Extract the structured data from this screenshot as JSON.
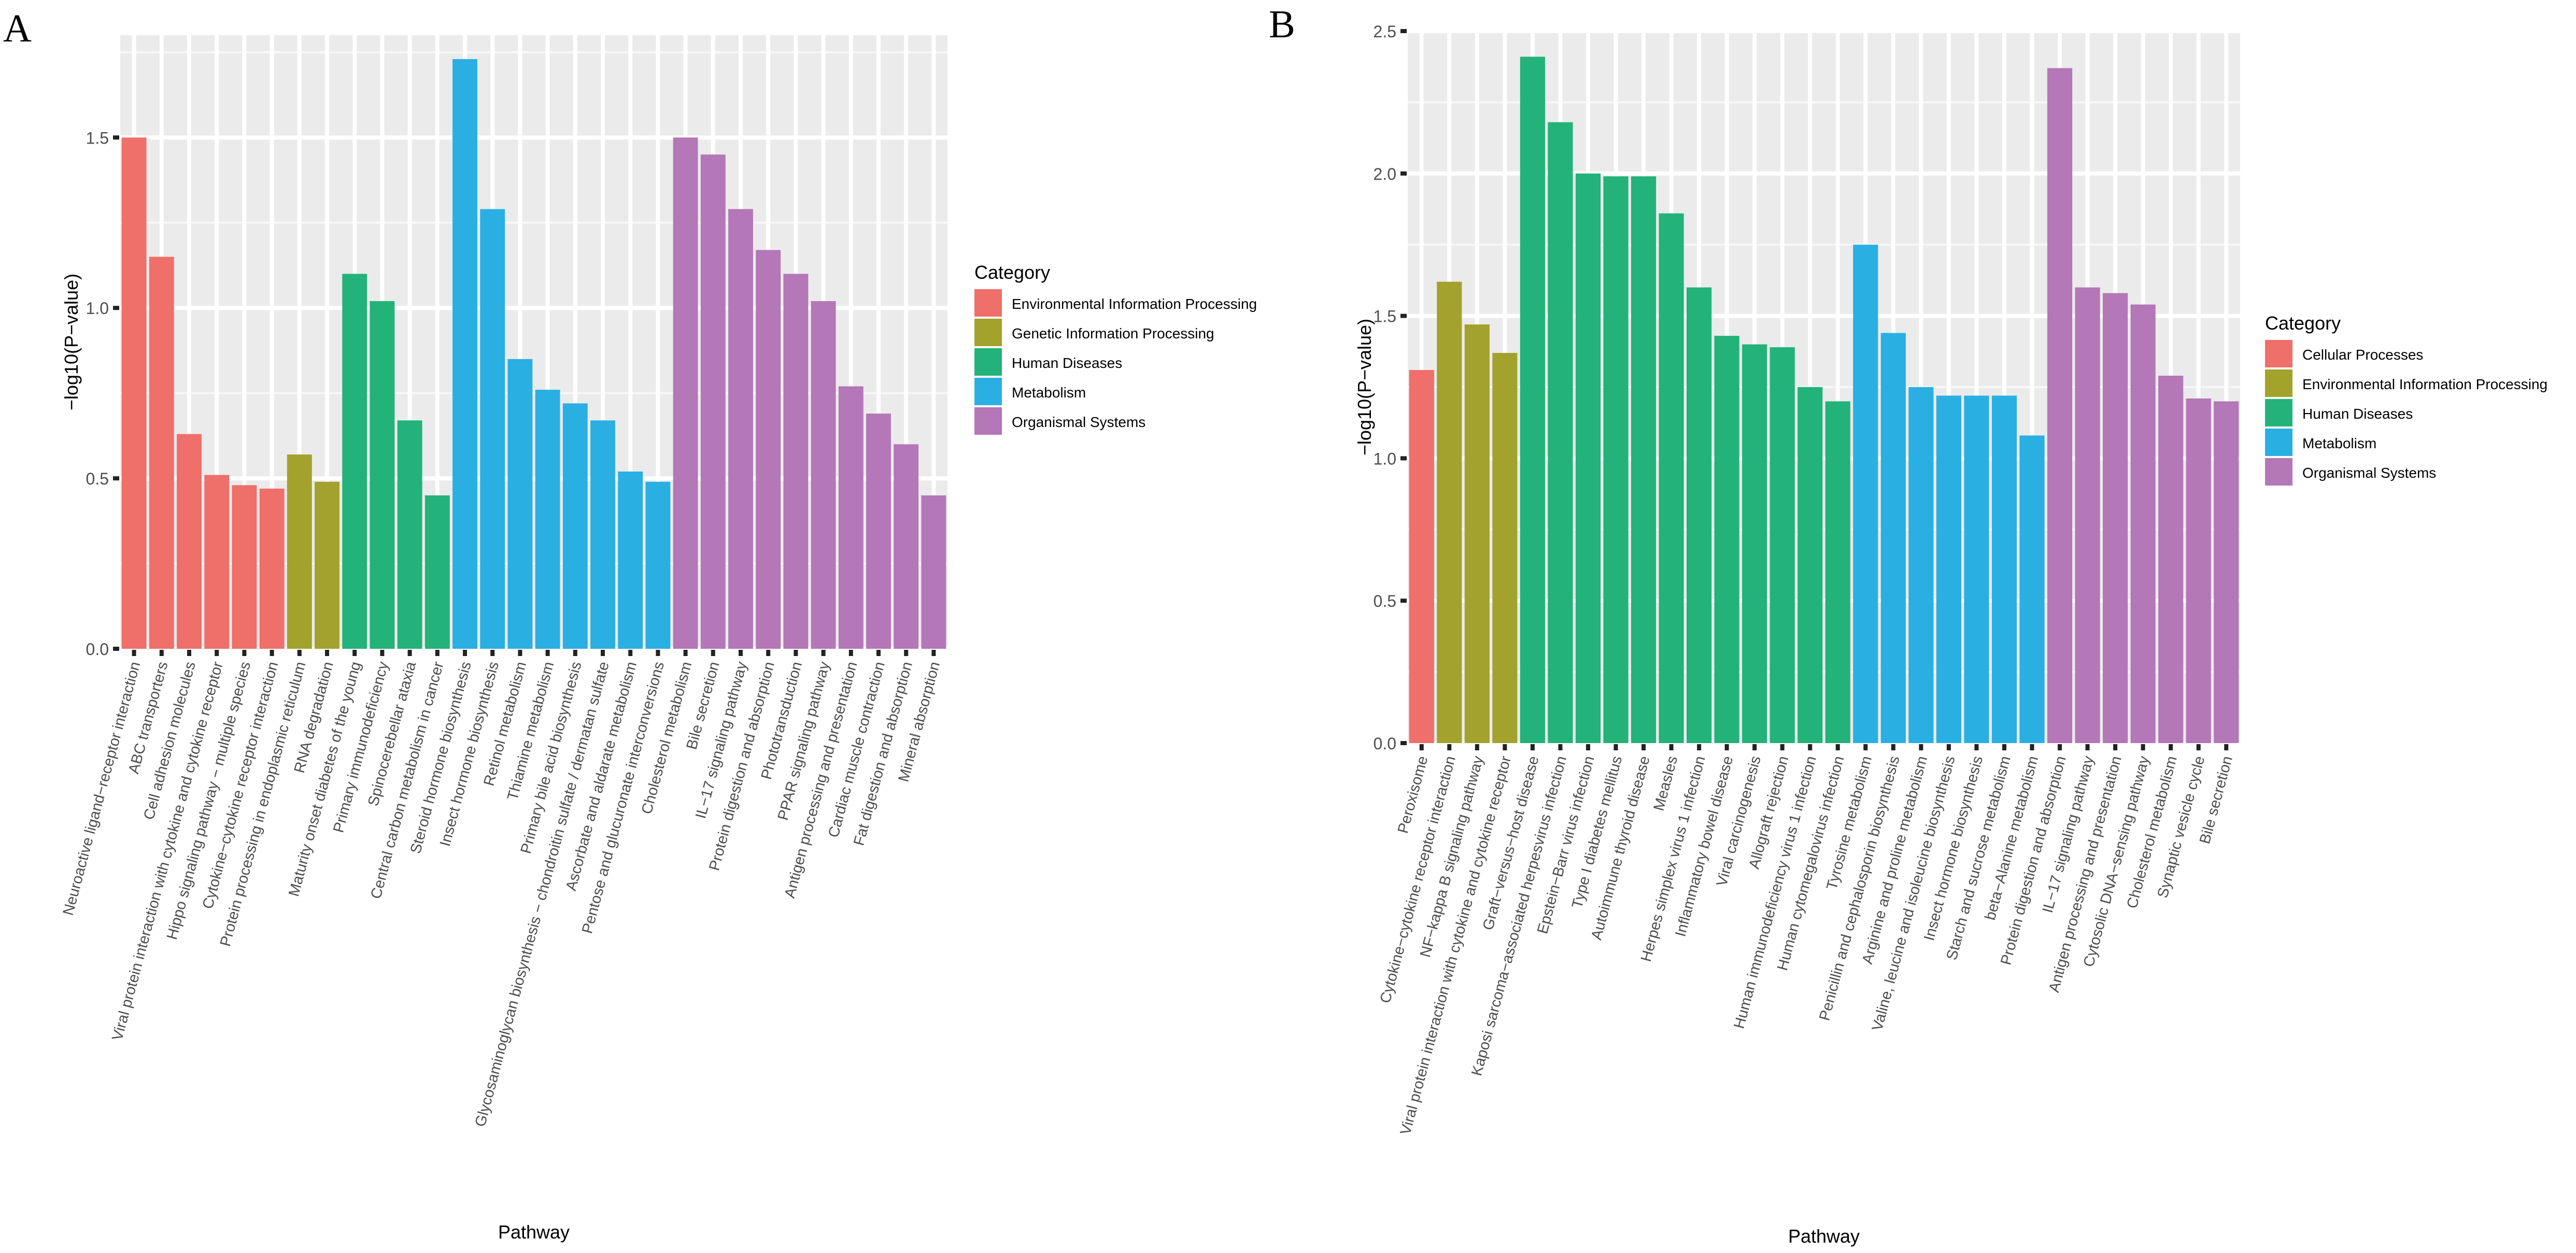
{
  "figure": {
    "panel_a_label": "A",
    "panel_b_label": "B"
  },
  "chart_data": [
    {
      "type": "bar",
      "panel": "A",
      "xlabel": "Pathway",
      "ylabel": "−log10(P−value)",
      "ylim": [
        0,
        1.8
      ],
      "yticks": [
        0.0,
        0.5,
        1.0,
        1.5
      ],
      "ytick_labels": [
        "0.0",
        "0.5",
        "1.0",
        "1.5"
      ],
      "grid": true,
      "legend_position": "right",
      "legend_title": "Category",
      "legend": [
        {
          "name": "Environmental Information Processing",
          "color": "#EF6F6A"
        },
        {
          "name": "Genetic Information Processing",
          "color": "#A3A22D"
        },
        {
          "name": "Human Diseases",
          "color": "#23B27A"
        },
        {
          "name": "Metabolism",
          "color": "#2AAFE3"
        },
        {
          "name": "Organismal Systems",
          "color": "#B477B7"
        }
      ],
      "categories": [
        "Neuroactive ligand−receptor interaction",
        "ABC transporters",
        "Cell adhesion molecules",
        "Viral protein interaction with cytokine and cytokine receptor",
        "Hippo signaling pathway − multiple species",
        "Cytokine−cytokine receptor interaction",
        "Protein processing in endoplasmic reticulum",
        "RNA degradation",
        "Maturity onset diabetes of the young",
        "Primary immunodeficiency",
        "Spinocerebellar ataxia",
        "Central carbon metabolism in cancer",
        "Steroid hormone biosynthesis",
        "Insect hormone biosynthesis",
        "Retinol metabolism",
        "Thiamine metabolism",
        "Primary bile acid biosynthesis",
        "Glycosaminoglycan biosynthesis − chondroitin sulfate / dermatan sulfate",
        "Ascorbate and aldarate metabolism",
        "Pentose and glucuronate interconversions",
        "Cholesterol metabolism",
        "Bile secretion",
        "IL−17 signaling pathway",
        "Protein digestion and absorption",
        "Phototransduction",
        "PPAR signaling pathway",
        "Antigen processing and presentation",
        "Cardiac muscle contraction",
        "Fat digestion and absorption",
        "Mineral absorption"
      ],
      "values": [
        1.5,
        1.15,
        0.63,
        0.51,
        0.48,
        0.47,
        0.57,
        0.49,
        1.1,
        1.02,
        0.67,
        0.45,
        1.73,
        1.29,
        0.85,
        0.76,
        0.72,
        0.67,
        0.52,
        0.49,
        1.5,
        1.45,
        1.29,
        1.17,
        1.1,
        1.02,
        0.77,
        0.69,
        0.6,
        0.45
      ],
      "groups": [
        0,
        0,
        0,
        0,
        0,
        0,
        1,
        1,
        2,
        2,
        2,
        2,
        3,
        3,
        3,
        3,
        3,
        3,
        3,
        3,
        4,
        4,
        4,
        4,
        4,
        4,
        4,
        4,
        4,
        4
      ]
    },
    {
      "type": "bar",
      "panel": "B",
      "xlabel": "Pathway",
      "ylabel": "−log10(P−value)",
      "ylim": [
        0,
        2.5
      ],
      "yticks": [
        0.0,
        0.5,
        1.0,
        1.5,
        2.0,
        2.5
      ],
      "ytick_labels": [
        "0.0",
        "0.5",
        "1.0",
        "1.5",
        "2.0",
        "2.5"
      ],
      "grid": true,
      "legend_position": "right",
      "legend_title": "Category",
      "legend": [
        {
          "name": "Cellular Processes",
          "color": "#EF6F6A"
        },
        {
          "name": "Environmental Information Processing",
          "color": "#A3A22D"
        },
        {
          "name": "Human Diseases",
          "color": "#23B27A"
        },
        {
          "name": "Metabolism",
          "color": "#2AAFE3"
        },
        {
          "name": "Organismal Systems",
          "color": "#B477B7"
        }
      ],
      "categories": [
        "Peroxisome",
        "Cytokine−cytokine receptor interaction",
        "NF−kappa B signaling pathway",
        "Viral protein interaction with cytokine and cytokine receptor",
        "Graft−versus−host disease",
        "Kaposi sarcoma−associated herpesvirus infection",
        "Epstein−Barr virus infection",
        "Type I diabetes mellitus",
        "Autoimmune thyroid disease",
        "Measles",
        "Herpes simplex virus 1 infection",
        "Inflammatory bowel disease",
        "Viral carcinogenesis",
        "Allograft rejection",
        "Human immunodeficiency virus 1 infection",
        "Human cytomegalovirus infection",
        "Tyrosine metabolism",
        "Penicillin and cephalosporin biosynthesis",
        "Arginine and proline metabolism",
        "Valine, leucine and isoleucine biosynthesis",
        "Insect hormone biosynthesis",
        "Starch and sucrose metabolism",
        "beta−Alanine metabolism",
        "Protein digestion and absorption",
        "IL−17 signaling pathway",
        "Antigen processing and presentation",
        "Cytosolic DNA−sensing pathway",
        "Cholesterol metabolism",
        "Synaptic vesicle cycle",
        "Bile secretion"
      ],
      "values": [
        1.31,
        1.62,
        1.47,
        1.37,
        2.41,
        2.18,
        2.0,
        1.99,
        1.99,
        1.86,
        1.6,
        1.43,
        1.4,
        1.39,
        1.25,
        1.2,
        1.75,
        1.44,
        1.25,
        1.22,
        1.22,
        1.22,
        1.08,
        2.37,
        1.6,
        1.58,
        1.54,
        1.29,
        1.21,
        1.2
      ],
      "groups": [
        0,
        1,
        1,
        1,
        2,
        2,
        2,
        2,
        2,
        2,
        2,
        2,
        2,
        2,
        2,
        2,
        3,
        3,
        3,
        3,
        3,
        3,
        3,
        4,
        4,
        4,
        4,
        4,
        4,
        4
      ]
    }
  ]
}
